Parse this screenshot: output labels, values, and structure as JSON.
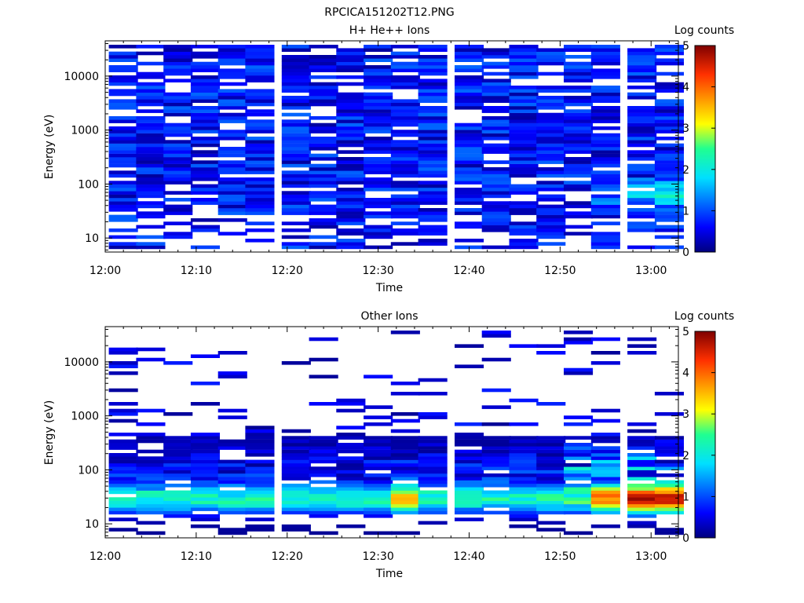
{
  "figure_title": "RPCICA151202T12.PNG",
  "chart_data": [
    {
      "type": "heatmap",
      "title": "H+ He++ Ions",
      "xlabel": "Time",
      "ylabel": "Energy (eV)",
      "x_scale": "time",
      "y_scale": "log",
      "xlim": [
        "12:00",
        "13:03"
      ],
      "ylim": [
        5.5,
        45000
      ],
      "x_ticks": [
        "12:00",
        "12:10",
        "12:20",
        "12:30",
        "12:40",
        "12:50",
        "13:00"
      ],
      "y_ticks": [
        "10",
        "100",
        "1000",
        "10000"
      ],
      "colorbar": {
        "label": "Log counts",
        "range": [
          0,
          5
        ],
        "ticks": [
          "0",
          "1",
          "2",
          "3",
          "4",
          "5"
        ],
        "colormap": "rainbow"
      },
      "time_bins": [
        "12:02",
        "12:05",
        "12:08",
        "12:11",
        "12:14",
        "12:17",
        "12:21",
        "12:24",
        "12:27",
        "12:30",
        "12:33",
        "12:36",
        "12:40",
        "12:43",
        "12:46",
        "12:49",
        "12:52",
        "12:55",
        "12:59",
        "13:02"
      ],
      "energy_range_eV": [
        6.3,
        38000
      ],
      "summary": "Low counts (log counts about 0-1.3) across most energies with many empty channels; slightly higher values (~1.5-2.5) near 30-100 eV at the last time bins around 12:58-13:03."
    },
    {
      "type": "heatmap",
      "title": "Other Ions",
      "xlabel": "Time",
      "ylabel": "Energy (eV)",
      "x_scale": "time",
      "y_scale": "log",
      "xlim": [
        "12:00",
        "13:03"
      ],
      "ylim": [
        5.5,
        45000
      ],
      "x_ticks": [
        "12:00",
        "12:10",
        "12:20",
        "12:30",
        "12:40",
        "12:50",
        "13:00"
      ],
      "y_ticks": [
        "10",
        "100",
        "1000",
        "10000"
      ],
      "colorbar": {
        "label": "Log counts",
        "range": [
          0,
          5
        ],
        "ticks": [
          "0",
          "1",
          "2",
          "3",
          "4",
          "5"
        ],
        "colormap": "rainbow"
      },
      "time_bins": [
        "12:02",
        "12:05",
        "12:08",
        "12:11",
        "12:14",
        "12:17",
        "12:21",
        "12:24",
        "12:27",
        "12:30",
        "12:33",
        "12:36",
        "12:40",
        "12:43",
        "12:46",
        "12:49",
        "12:52",
        "12:55",
        "12:59",
        "13:02"
      ],
      "energy_range_eV": [
        6.3,
        38000
      ],
      "summary": "Band of enhanced counts (log counts ~1.5-3) at roughly 20-60 eV throughout the interval, peaking near 3.5-4.5 around 30-80 eV at 12:54-13:03 and ~3.3 near 30-50 eV at 12:32; sparse weak counts up to ~30000 eV."
    }
  ]
}
